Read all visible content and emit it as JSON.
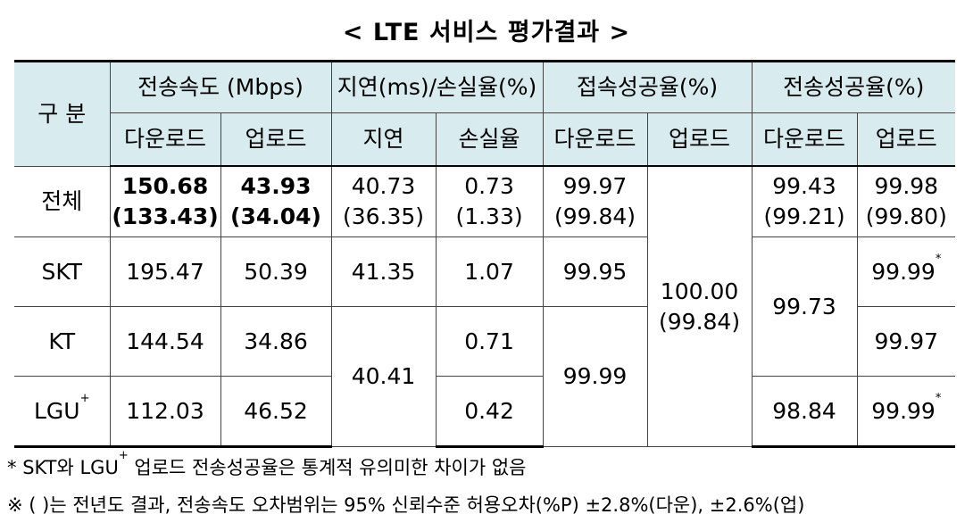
{
  "title": "< LTE 서비스 평가결과 >",
  "headers": {
    "category": "구 분",
    "groups": [
      "전송속도 (Mbps)",
      "지연(ms)/손실율(%)",
      "접속성공율(%)",
      "전송성공율(%)"
    ],
    "subs": [
      "다운로드",
      "업로드",
      "지연",
      "손실율",
      "다운로드",
      "업로드",
      "다운로드",
      "업로드"
    ]
  },
  "rows": {
    "total": {
      "label": "전체",
      "speed_down": [
        "150.68",
        "(133.43)"
      ],
      "speed_up": [
        "43.93",
        "(34.04)"
      ],
      "latency": [
        "40.73",
        "(36.35)"
      ],
      "loss": [
        "0.73",
        "(1.33)"
      ],
      "conn_down": [
        "99.97",
        "(99.84)"
      ],
      "trans_down": [
        "99.43",
        "(99.21)"
      ],
      "trans_up": [
        "99.98",
        "(99.80)"
      ]
    },
    "skt": {
      "label": "SKT",
      "speed_down": "195.47",
      "speed_up": "50.39",
      "latency": "41.35",
      "loss": "1.07",
      "conn_down": "99.95",
      "trans_up": "99.99",
      "trans_up_mark": "*"
    },
    "kt": {
      "label": "KT",
      "speed_down": "144.54",
      "speed_up": "34.86",
      "loss": "0.71",
      "trans_up": "99.97"
    },
    "lgu": {
      "label": "LGU",
      "label_sup": "+",
      "speed_down": "112.03",
      "speed_up": "46.52",
      "loss": "0.42",
      "trans_down": "98.84",
      "trans_up": "99.99",
      "trans_up_mark": "*"
    },
    "merged": {
      "conn_up": [
        "100.00",
        "(99.84)"
      ],
      "trans_down_skt_kt": "99.73",
      "latency_kt_lgu": "40.41",
      "conn_down_kt_lgu": "99.99"
    }
  },
  "notes": {
    "note1": {
      "star": "*",
      "part1": "SKT와 LGU",
      "sup": "+",
      "part2": " 업로드 전송성공율은 통계적 유의미한 차이가 없음"
    },
    "note2": "※ ( )는 전년도 결과, 전송속도 오차범위는 95% 신뢰수준 허용오차(%P) ±2.8%(다운), ±2.6%(업)"
  },
  "colors": {
    "header_bg": "#d8ecf0",
    "border": "#444444"
  }
}
